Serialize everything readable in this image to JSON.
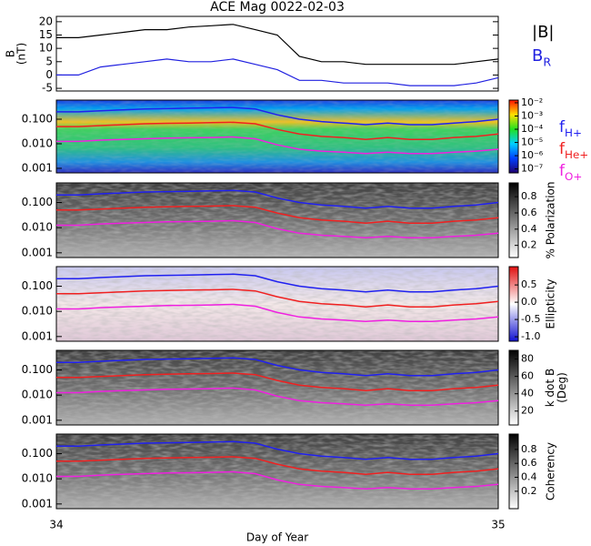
{
  "chart_data": [
    {
      "type": "line",
      "title": "ACE Mag 0022-02-03",
      "ylabel": [
        "B",
        "(nT)"
      ],
      "x": [
        34,
        34.05,
        34.1,
        34.15,
        34.2,
        34.25,
        34.3,
        34.35,
        34.4,
        34.45,
        34.5,
        34.55,
        34.6,
        34.65,
        34.7,
        34.75,
        34.8,
        34.85,
        34.9,
        34.95,
        35
      ],
      "xlim": [
        34,
        35
      ],
      "ylim": [
        -6,
        22
      ],
      "yticks": [
        -5,
        0,
        5,
        10,
        15,
        20
      ],
      "series": [
        {
          "name": "|B|",
          "color": "#000000",
          "values": [
            14,
            14,
            15,
            16,
            17,
            17,
            18,
            18.5,
            19,
            17,
            15,
            7,
            5,
            5,
            4,
            4,
            4,
            4,
            4,
            5,
            6
          ]
        },
        {
          "name": "B",
          "subscript": "R",
          "color": "#2020e0",
          "values": [
            0,
            0,
            3,
            4,
            5,
            6,
            5,
            5,
            6,
            4,
            2,
            -2,
            -2,
            -3,
            -3,
            -3,
            -4,
            -4,
            -4,
            -3,
            -1
          ]
        }
      ]
    },
    {
      "type": "spectrogram",
      "log": true,
      "x": [
        34,
        34.05,
        34.1,
        34.15,
        34.2,
        34.25,
        34.3,
        34.35,
        34.4,
        34.45,
        34.5,
        34.55,
        34.6,
        34.65,
        34.7,
        34.75,
        34.8,
        34.85,
        34.9,
        34.95,
        35
      ],
      "xlim": [
        34,
        35
      ],
      "xticks": [
        34,
        35
      ],
      "xlabel": "Day of Year",
      "ylim": [
        0.00065,
        0.6
      ],
      "yticks": [
        {
          "value": 0.001,
          "label": "0.001"
        },
        {
          "value": 0.01,
          "label": "0.010"
        },
        {
          "value": 0.1,
          "label": "0.100"
        }
      ],
      "series": [
        {
          "name": "f",
          "subscript": "H+",
          "color": "#2020f0",
          "values": [
            0.2,
            0.2,
            0.22,
            0.24,
            0.26,
            0.27,
            0.28,
            0.29,
            0.3,
            0.26,
            0.15,
            0.1,
            0.08,
            0.07,
            0.06,
            0.07,
            0.06,
            0.06,
            0.07,
            0.08,
            0.1
          ]
        },
        {
          "name": "f",
          "subscript": "He+",
          "color": "#f02020",
          "values": [
            0.05,
            0.05,
            0.055,
            0.06,
            0.065,
            0.068,
            0.07,
            0.072,
            0.075,
            0.065,
            0.038,
            0.025,
            0.02,
            0.018,
            0.015,
            0.018,
            0.015,
            0.015,
            0.018,
            0.02,
            0.025
          ]
        },
        {
          "name": "f",
          "subscript": "O+",
          "color": "#f020e0",
          "values": [
            0.0125,
            0.0125,
            0.014,
            0.015,
            0.016,
            0.017,
            0.0175,
            0.018,
            0.019,
            0.016,
            0.009,
            0.006,
            0.005,
            0.0045,
            0.004,
            0.0045,
            0.004,
            0.004,
            0.0045,
            0.005,
            0.006
          ]
        }
      ],
      "panels": [
        {
          "colormap": "rainbow",
          "clog": true,
          "clim": [
            5e-08,
            0.016
          ],
          "cticks": [
            {
              "value": 0.01,
              "label": "10⁻²"
            },
            {
              "value": 0.001,
              "label": "10⁻³"
            },
            {
              "value": 0.0001,
              "label": "10⁻⁴"
            },
            {
              "value": 1e-05,
              "label": "10⁻⁵"
            },
            {
              "value": 1e-06,
              "label": "10⁻⁶"
            },
            {
              "value": 1e-07,
              "label": "10⁻⁷"
            }
          ]
        },
        {
          "colormap": "gray",
          "clim": [
            0.05,
            0.97
          ],
          "cticks": [
            0.2,
            0.4,
            0.6,
            0.8
          ],
          "clabel": [
            "% Polarization"
          ]
        },
        {
          "colormap": "bwr",
          "clim": [
            -1.13,
            1.03
          ],
          "cticks": [
            {
              "value": -1,
              "label": "-1.0"
            },
            -0.5,
            {
              "value": 0,
              "label": "0.0"
            },
            0.5
          ],
          "clabel": [
            "Ellipticity"
          ]
        },
        {
          "colormap": "gray",
          "clim": [
            4,
            90
          ],
          "cticks": [
            20,
            40,
            60,
            80
          ],
          "clabel": [
            "k dot B",
            "(Deg)"
          ]
        },
        {
          "colormap": "gray",
          "clim": [
            -0.05,
            1.02
          ],
          "cticks": [
            0.2,
            0.4,
            0.6,
            0.8
          ],
          "clabel": [
            "Coherency"
          ]
        }
      ]
    }
  ]
}
